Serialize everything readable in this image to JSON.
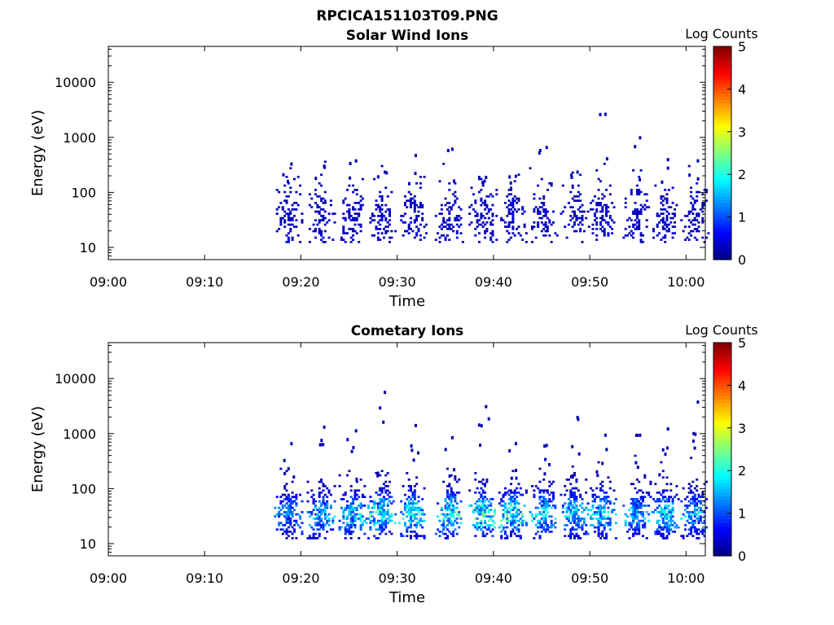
{
  "figure": {
    "title": "RPCICA151103T09.PNG"
  },
  "colorbar": {
    "label": "Log Counts",
    "ticks": [
      "0",
      "1",
      "2",
      "3",
      "4",
      "5"
    ],
    "range": [
      0,
      5
    ],
    "colormap": "jet"
  },
  "chart_data": [
    {
      "type": "heatmap",
      "title": "Solar Wind Ions",
      "xlabel": "Time",
      "ylabel": "Energy (eV)",
      "x_ticks": [
        "09:00",
        "09:10",
        "09:20",
        "09:30",
        "09:40",
        "09:50",
        "10:00"
      ],
      "y_ticks": [
        "10",
        "100",
        "1000",
        "10000"
      ],
      "y_scale": "log",
      "ylim": [
        6,
        45000
      ],
      "xlim_minutes_after_0900": [
        0,
        62
      ],
      "bursts": [
        {
          "t": 18.6,
          "level": 0.35,
          "max_e": 350
        },
        {
          "t": 22.0,
          "level": 0.4,
          "max_e": 320
        },
        {
          "t": 25.3,
          "level": 0.45,
          "max_e": 400
        },
        {
          "t": 28.3,
          "level": 0.45,
          "max_e": 250
        },
        {
          "t": 31.5,
          "level": 0.4,
          "max_e": 500
        },
        {
          "t": 35.3,
          "level": 0.5,
          "max_e": 650
        },
        {
          "t": 38.8,
          "level": 0.5,
          "max_e": 200
        },
        {
          "t": 41.9,
          "level": 0.5,
          "max_e": 210
        },
        {
          "t": 45.1,
          "level": 0.4,
          "max_e": 700
        },
        {
          "t": 48.3,
          "level": 0.4,
          "max_e": 250
        },
        {
          "t": 51.2,
          "level": 0.45,
          "max_e": 2800
        },
        {
          "t": 54.8,
          "level": 0.4,
          "max_e": 1050
        },
        {
          "t": 57.7,
          "level": 0.45,
          "max_e": 420
        },
        {
          "t": 60.8,
          "level": 0.4,
          "max_e": 400
        }
      ]
    },
    {
      "type": "heatmap",
      "title": "Cometary Ions",
      "xlabel": "Time",
      "ylabel": "Energy (eV)",
      "x_ticks": [
        "09:00",
        "09:10",
        "09:20",
        "09:30",
        "09:40",
        "09:50",
        "10:00"
      ],
      "y_ticks": [
        "10",
        "100",
        "1000",
        "10000"
      ],
      "y_scale": "log",
      "ylim": [
        6,
        45000
      ],
      "xlim_minutes_after_0900": [
        0,
        62
      ],
      "bursts": [
        {
          "t": 18.6,
          "level": 1.3,
          "max_e": 700
        },
        {
          "t": 22.0,
          "level": 1.5,
          "max_e": 1400
        },
        {
          "t": 25.3,
          "level": 1.6,
          "max_e": 1200
        },
        {
          "t": 28.3,
          "level": 1.9,
          "max_e": 6000
        },
        {
          "t": 31.5,
          "level": 1.8,
          "max_e": 1500
        },
        {
          "t": 35.3,
          "level": 1.9,
          "max_e": 900
        },
        {
          "t": 38.8,
          "level": 2.0,
          "max_e": 3300
        },
        {
          "t": 41.9,
          "level": 2.0,
          "max_e": 700
        },
        {
          "t": 45.1,
          "level": 1.7,
          "max_e": 650
        },
        {
          "t": 48.3,
          "level": 1.6,
          "max_e": 2100
        },
        {
          "t": 51.2,
          "level": 1.7,
          "max_e": 1000
        },
        {
          "t": 54.8,
          "level": 1.5,
          "max_e": 1000
        },
        {
          "t": 57.7,
          "level": 1.6,
          "max_e": 1300
        },
        {
          "t": 60.8,
          "level": 1.5,
          "max_e": 4000
        }
      ]
    }
  ]
}
